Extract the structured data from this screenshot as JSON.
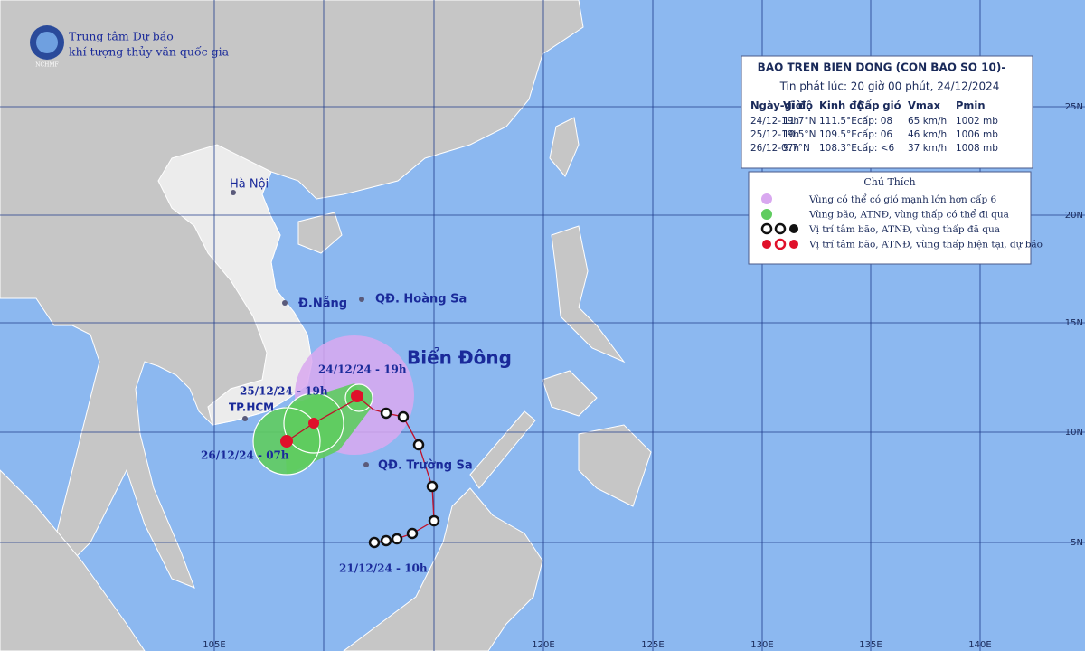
{
  "header": {
    "org_line1": "Trung tâm Dự báo",
    "org_line2": "khí tượng thủy văn quốc gia",
    "logo": "NCHMF"
  },
  "info": {
    "title": "BAO TREN BIEN DONG (CON BAO SO 10)-",
    "issued": "Tin phát lúc: 20 giờ 00 phút, 24/12/2024",
    "columns": [
      "Ngày-giờ",
      "Vĩ độ",
      "Kinh độ",
      "Cấp gió",
      "Vmax",
      "Pmin"
    ],
    "rows": [
      [
        "24/12-19h",
        "11.7°N",
        "111.5°E",
        "cấp: 08",
        "65 km/h",
        "1002 mb"
      ],
      [
        "25/12-19h",
        "10.5°N",
        "109.5°E",
        "cấp: 06",
        "46 km/h",
        "1006 mb"
      ],
      [
        "26/12-07h",
        "9.7°N",
        "108.3°E",
        "cấp: <6",
        "37 km/h",
        "1008 mb"
      ]
    ]
  },
  "legend": {
    "title": "Chú Thích",
    "items": [
      "Vùng có thể có gió mạnh lớn hơn cấp 6",
      "Vùng bão, ATNĐ, vùng thấp có thể đi qua",
      "Vị trí tâm bão, ATNĐ, vùng thấp đã qua",
      "Vị trí tâm bão, ATNĐ, vùng thấp hiện tại, dự báo"
    ]
  },
  "places": [
    "Hà Nội",
    "Đ.Nẵng",
    "QĐ. Hoàng Sa",
    "Biển Đông",
    "TP.HCM",
    "QĐ. Trường Sa"
  ],
  "track_labels": [
    "24/12/24 - 19h",
    "25/12/24 - 19h",
    "26/12/24 - 07h",
    "21/12/24 - 10h"
  ],
  "lon_labels": [
    "105E",
    "120E",
    "125E",
    "130E",
    "135E",
    "140E"
  ],
  "lat_labels": [
    "25N",
    "20N",
    "15N",
    "10N",
    "5N"
  ]
}
